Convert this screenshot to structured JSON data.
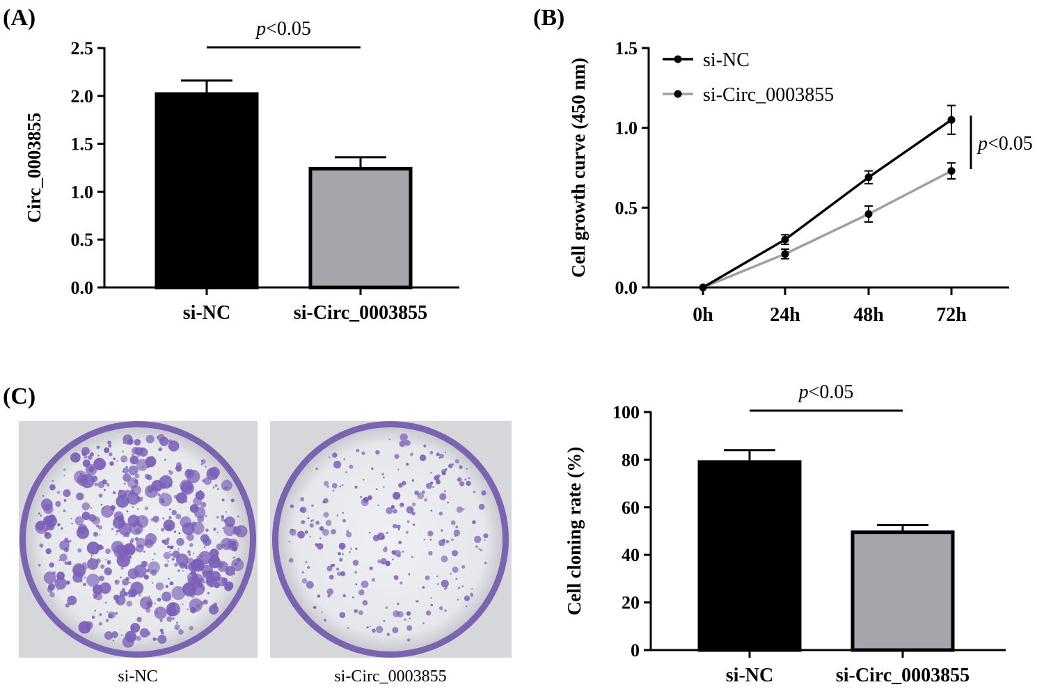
{
  "panels": {
    "a_label": "(A)",
    "b_label": "(B)",
    "c_label": "(C)"
  },
  "chart_data": [
    {
      "type": "bar",
      "panel": "A",
      "ylabel": "Circ_0003855",
      "ylim": [
        0,
        2.5
      ],
      "yticks": [
        "0.0",
        "0.5",
        "1.0",
        "1.5",
        "2.0",
        "2.5"
      ],
      "categories": [
        "si-NC",
        "si-Circ_0003855"
      ],
      "values": [
        2.02,
        1.24
      ],
      "errors": [
        0.14,
        0.12
      ],
      "bar_colors": [
        "#000000",
        "#a6a5ab"
      ],
      "annotation": {
        "italic": "p",
        "text": "<0.05"
      }
    },
    {
      "type": "line",
      "panel": "B",
      "ylabel": "Cell growth curve (450 nm)",
      "ylim": [
        0,
        1.5
      ],
      "yticks": [
        "0.0",
        "0.5",
        "1.0",
        "1.5"
      ],
      "categories": [
        "0h",
        "24h",
        "48h",
        "72h"
      ],
      "series": [
        {
          "name": "si-NC",
          "values": [
            0.0,
            0.3,
            0.69,
            1.05
          ],
          "errors": [
            0,
            0.03,
            0.04,
            0.09
          ],
          "color": "#000000"
        },
        {
          "name": "si-Circ_0003855",
          "values": [
            0.0,
            0.21,
            0.46,
            0.73
          ],
          "errors": [
            0,
            0.03,
            0.05,
            0.05
          ],
          "color": "#a0a0a0"
        }
      ],
      "legend_position": "top-left",
      "annotation": {
        "italic": "p",
        "text": "<0.05"
      }
    },
    {
      "type": "bar",
      "panel": "C",
      "ylabel": "Cell cloning rate (%)",
      "ylim": [
        0,
        100
      ],
      "yticks": [
        "0",
        "20",
        "40",
        "60",
        "80",
        "100"
      ],
      "categories": [
        "si-NC",
        "si-Circ_0003855"
      ],
      "values": [
        79,
        49.5
      ],
      "errors": [
        5,
        3
      ],
      "bar_colors": [
        "#000000",
        "#a6a5ab"
      ],
      "annotation": {
        "italic": "p",
        "text": "<0.05"
      }
    }
  ],
  "photos": {
    "left_caption": "si-NC",
    "right_caption": "si-Circ_0003855",
    "stain_color": "#7b5fb8",
    "dish_color": "#d8d8dc"
  }
}
